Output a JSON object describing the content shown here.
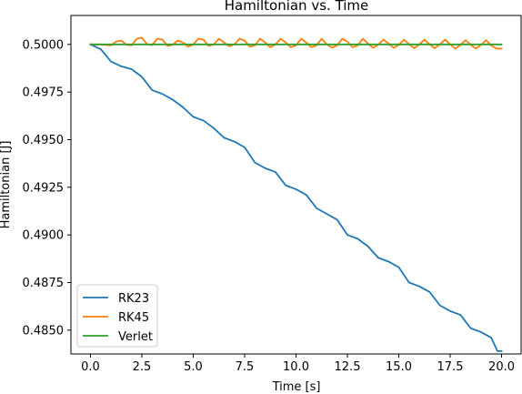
{
  "chart_data": {
    "type": "line",
    "title": "Hamiltonian vs. Time",
    "xlabel": "Time [s]",
    "ylabel": "Hamiltonian [J]",
    "xlim": [
      -0.95,
      20.95
    ],
    "ylim": [
      0.48375,
      0.50152
    ],
    "xticks": [
      0.0,
      2.5,
      5.0,
      7.5,
      10.0,
      12.5,
      15.0,
      17.5,
      20.0
    ],
    "xtick_labels": [
      "0.0",
      "2.5",
      "5.0",
      "7.5",
      "10.0",
      "12.5",
      "15.0",
      "17.5",
      "20.0"
    ],
    "yticks": [
      0.485,
      0.4875,
      0.49,
      0.4925,
      0.495,
      0.4975,
      0.5
    ],
    "ytick_labels": [
      "0.4850",
      "0.4875",
      "0.4900",
      "0.4925",
      "0.4950",
      "0.4975",
      "0.5000"
    ],
    "grid": false,
    "legend_position": "lower-left",
    "series": [
      {
        "name": "RK23",
        "color": "#1f77b4",
        "x": [
          0.0,
          0.5,
          1.0,
          1.5,
          2.0,
          2.5,
          3.0,
          3.5,
          4.0,
          4.5,
          5.0,
          5.5,
          6.0,
          6.5,
          7.0,
          7.5,
          8.0,
          8.5,
          9.0,
          9.5,
          10.0,
          10.5,
          11.0,
          11.5,
          12.0,
          12.5,
          13.0,
          13.5,
          14.0,
          14.5,
          15.0,
          15.5,
          16.0,
          16.5,
          17.0,
          17.5,
          18.0,
          18.5,
          19.0,
          19.5,
          19.8,
          20.0
        ],
        "y": [
          0.5,
          0.49975,
          0.4991,
          0.49885,
          0.4987,
          0.4983,
          0.4976,
          0.4974,
          0.4971,
          0.4967,
          0.4962,
          0.496,
          0.4956,
          0.4951,
          0.4949,
          0.4946,
          0.4938,
          0.4935,
          0.4933,
          0.4926,
          0.4924,
          0.4921,
          0.4914,
          0.4911,
          0.4908,
          0.49,
          0.4898,
          0.4894,
          0.4888,
          0.4886,
          0.4883,
          0.4875,
          0.4873,
          0.487,
          0.4863,
          0.486,
          0.4858,
          0.4851,
          0.4849,
          0.4846,
          0.4839,
          0.4839
        ]
      },
      {
        "name": "RK45",
        "color": "#ff7f0e",
        "x": [
          0.0,
          0.5,
          1.0,
          1.25,
          1.5,
          1.75,
          2.0,
          2.25,
          2.5,
          2.75,
          3.0,
          3.25,
          3.5,
          3.75,
          4.0,
          4.25,
          4.5,
          4.75,
          5.0,
          5.25,
          5.5,
          5.75,
          6.0,
          6.25,
          6.5,
          6.75,
          7.0,
          7.25,
          7.5,
          7.75,
          8.0,
          8.25,
          8.5,
          8.75,
          9.0,
          9.25,
          9.5,
          9.75,
          10.0,
          10.25,
          10.5,
          10.75,
          11.0,
          11.25,
          11.5,
          11.75,
          12.0,
          12.25,
          12.5,
          12.75,
          13.0,
          13.25,
          13.5,
          13.75,
          14.0,
          14.25,
          14.5,
          14.75,
          15.0,
          15.25,
          15.5,
          15.75,
          16.0,
          16.25,
          16.5,
          16.75,
          17.0,
          17.25,
          17.5,
          17.75,
          18.0,
          18.25,
          18.5,
          18.75,
          19.0,
          19.25,
          19.5,
          19.75,
          20.0
        ],
        "y": [
          0.5,
          0.5,
          0.49995,
          0.50015,
          0.5002,
          0.49998,
          0.49995,
          0.5003,
          0.50035,
          0.50002,
          0.49996,
          0.5003,
          0.50025,
          0.49992,
          0.49998,
          0.5002,
          0.5001,
          0.49988,
          0.5,
          0.5003,
          0.50025,
          0.49992,
          0.5,
          0.5003,
          0.5001,
          0.4999,
          0.5,
          0.5003,
          0.5002,
          0.49988,
          0.49995,
          0.5003,
          0.5001,
          0.49985,
          0.5,
          0.5003,
          0.5001,
          0.49985,
          0.49995,
          0.5003,
          0.5001,
          0.49985,
          0.49995,
          0.5003,
          0.5,
          0.49983,
          0.49995,
          0.5003,
          0.50015,
          0.49985,
          0.49995,
          0.5003,
          0.50005,
          0.49982,
          0.49998,
          0.50025,
          0.50005,
          0.49982,
          0.49998,
          0.50025,
          0.50002,
          0.4998,
          0.5,
          0.50025,
          0.5,
          0.4998,
          0.5,
          0.50025,
          0.5,
          0.49978,
          0.49998,
          0.50022,
          0.49998,
          0.49978,
          0.49998,
          0.50022,
          0.49995,
          0.49978,
          0.49978
        ]
      },
      {
        "name": "Verlet",
        "color": "#2ca02c",
        "x": [
          0.0,
          20.0
        ],
        "y": [
          0.5,
          0.5
        ]
      }
    ]
  }
}
